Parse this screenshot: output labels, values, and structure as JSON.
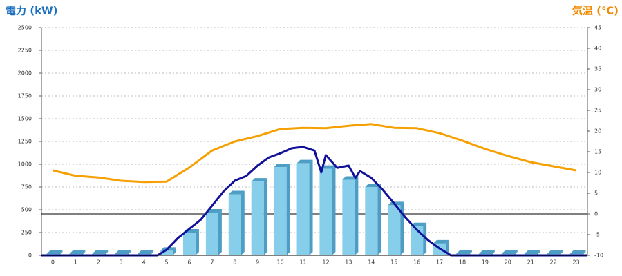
{
  "chart_data": {
    "type": "combo",
    "y_label": "電力 (kW)",
    "y2_label": "気温 (℃)",
    "categories": [
      "0",
      "1",
      "2",
      "3",
      "4",
      "5",
      "6",
      "7",
      "8",
      "9",
      "10",
      "11",
      "12",
      "13",
      "14",
      "15",
      "16",
      "17",
      "18",
      "19",
      "20",
      "21",
      "22",
      "23"
    ],
    "xlim": [
      -0.5,
      23.5
    ],
    "ylim": [
      0,
      2500
    ],
    "yticks": [
      0,
      250,
      500,
      750,
      1000,
      1250,
      1500,
      1750,
      2000,
      2250,
      2500
    ],
    "y2lim": [
      -10,
      45
    ],
    "y2ticks": [
      -10,
      -5,
      0,
      5,
      10,
      15,
      20,
      25,
      30,
      35,
      40,
      45
    ],
    "y2_reference": 0,
    "grid": true,
    "series": [
      {
        "type": "bar",
        "color": "#87ceeb",
        "side_color": "#4d9dc4",
        "values": [
          15,
          15,
          15,
          15,
          15,
          50,
          250,
          470,
          670,
          810,
          970,
          1010,
          950,
          830,
          750,
          550,
          320,
          130,
          15,
          15,
          15,
          15,
          15,
          15
        ]
      },
      {
        "type": "line",
        "color": "#11119a",
        "x": [
          -0.5,
          4.6,
          5,
          5.5,
          6,
          6.5,
          7,
          7.5,
          8,
          8.5,
          9,
          9.5,
          10,
          10.5,
          11,
          11.5,
          11.8,
          12,
          12.5,
          13,
          13.3,
          13.5,
          14,
          14.5,
          15,
          15.5,
          16,
          16.5,
          17,
          17.5,
          23.5
        ],
        "values": [
          0,
          0,
          60,
          190,
          290,
          390,
          545,
          700,
          820,
          870,
          985,
          1075,
          1120,
          1175,
          1190,
          1150,
          910,
          1100,
          960,
          985,
          850,
          925,
          850,
          720,
          570,
          415,
          280,
          165,
          75,
          0,
          0
        ]
      },
      {
        "type": "line",
        "axis": "y2",
        "color": "#f5a000",
        "x": [
          0,
          1,
          2,
          3,
          4,
          5,
          6,
          7,
          8,
          9,
          10,
          11,
          12,
          13,
          14,
          15,
          16,
          17,
          18,
          19,
          20,
          21,
          22,
          23
        ],
        "values": [
          10.5,
          9.2,
          8.8,
          8,
          7.7,
          7.8,
          11.2,
          15.3,
          17.5,
          18.8,
          20.5,
          20.8,
          20.7,
          21.3,
          21.7,
          20.8,
          20.7,
          19.5,
          17.7,
          15.7,
          14,
          12.5,
          11.5,
          10.5
        ]
      }
    ]
  }
}
